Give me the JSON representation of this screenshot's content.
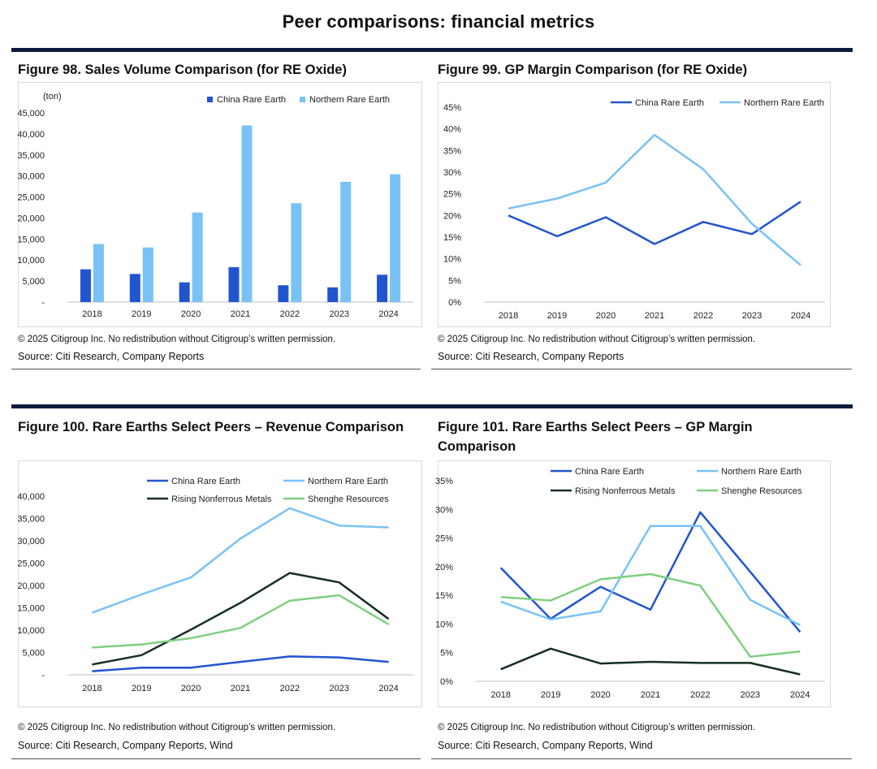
{
  "page": {
    "title": "Peer comparisons: financial metrics"
  },
  "colors": {
    "dark_blue": "#2155cf",
    "light_blue": "#79c2f5",
    "dark_green": "#14301f",
    "light_green": "#7fcf7f",
    "rule": "#0d1b3e"
  },
  "figures": [
    {
      "title": "Figure 98. Sales Volume Comparison (for RE Oxide)",
      "note": "© 2025 Citigroup Inc. No redistribution without Citigroup’s written permission.",
      "source": "Source: Citi Research, Company Reports"
    },
    {
      "title": "Figure 99. GP Margin Comparison (for RE Oxide)",
      "note": "© 2025 Citigroup Inc. No redistribution without Citigroup’s written permission.",
      "source": "Source: Citi Research, Company Reports"
    },
    {
      "title": "Figure 100. Rare Earths Select Peers – Revenue Comparison",
      "note": "© 2025 Citigroup Inc. No redistribution without Citigroup’s written permission.",
      "source": "Source: Citi Research, Company Reports, Wind"
    },
    {
      "title": "Figure 101. Rare Earths Select Peers – GP Margin Comparison",
      "note": "© 2025 Citigroup Inc. No redistribution without Citigroup’s written permission.",
      "source": "Source: Citi Research, Company Reports, Wind"
    }
  ],
  "chart_data": [
    {
      "type": "bar",
      "unit_label": "(ton)",
      "categories": [
        "2018",
        "2019",
        "2020",
        "2021",
        "2022",
        "2023",
        "2024"
      ],
      "yticks": [
        "-",
        "5,000",
        "10,000",
        "15,000",
        "20,000",
        "25,000",
        "30,000",
        "35,000",
        "40,000",
        "45,000"
      ],
      "ylim": [
        0,
        45000
      ],
      "series": [
        {
          "name": "China Rare Earth",
          "color": "#2155cf",
          "values": [
            7800,
            6700,
            4700,
            8300,
            4000,
            3500,
            6500
          ]
        },
        {
          "name": "Northern Rare Earth",
          "color": "#79c2f5",
          "values": [
            13800,
            13000,
            21300,
            42000,
            23500,
            28600,
            30400
          ]
        }
      ],
      "legend": "top-right"
    },
    {
      "type": "line",
      "categories": [
        "2018",
        "2019",
        "2020",
        "2021",
        "2022",
        "2023",
        "2024"
      ],
      "yticks": [
        "0%",
        "5%",
        "10%",
        "15%",
        "20%",
        "25%",
        "30%",
        "35%",
        "40%",
        "45%"
      ],
      "ylim": [
        0,
        45
      ],
      "series": [
        {
          "name": "China Rare Earth",
          "color": "#2155cf",
          "values": [
            20.0,
            15.2,
            19.6,
            13.4,
            18.5,
            15.7,
            23.2
          ]
        },
        {
          "name": "Northern Rare Earth",
          "color": "#79c2f5",
          "values": [
            21.6,
            23.9,
            27.6,
            38.6,
            30.7,
            18.1,
            8.5
          ]
        }
      ],
      "legend": "top"
    },
    {
      "type": "line",
      "categories": [
        "2018",
        "2019",
        "2020",
        "2021",
        "2022",
        "2023",
        "2024"
      ],
      "yticks": [
        "-",
        "5,000",
        "10,000",
        "15,000",
        "20,000",
        "25,000",
        "30,000",
        "35,000",
        "40,000"
      ],
      "ylim": [
        0,
        40000
      ],
      "series": [
        {
          "name": "China Rare Earth",
          "color": "#2155cf",
          "values": [
            800,
            1600,
            1600,
            2900,
            4100,
            3900,
            2900
          ]
        },
        {
          "name": "Northern Rare Earth",
          "color": "#79c2f5",
          "values": [
            13900,
            18000,
            21800,
            30500,
            37300,
            33400,
            33000
          ]
        },
        {
          "name": "Rising Nonferrous Metals",
          "color": "#14301f",
          "values": [
            2300,
            4400,
            10100,
            16100,
            22800,
            20700,
            12500
          ]
        },
        {
          "name": "Shenghe Resources",
          "color": "#7fcf7f",
          "values": [
            6100,
            6800,
            8200,
            10500,
            16600,
            17800,
            11300
          ]
        }
      ],
      "legend": "top"
    },
    {
      "type": "line",
      "categories": [
        "2018",
        "2019",
        "2020",
        "2021",
        "2022",
        "2023",
        "2024"
      ],
      "yticks": [
        "0%",
        "5%",
        "10%",
        "15%",
        "20%",
        "25%",
        "30%",
        "35%"
      ],
      "ylim": [
        0,
        35
      ],
      "series": [
        {
          "name": "China Rare Earth",
          "color": "#2155cf",
          "values": [
            19.8,
            10.9,
            16.5,
            12.5,
            29.5,
            19.1,
            8.6
          ]
        },
        {
          "name": "Northern Rare Earth",
          "color": "#79c2f5",
          "values": [
            13.9,
            10.8,
            12.2,
            27.1,
            27.1,
            14.2,
            9.8
          ]
        },
        {
          "name": "Rising Nonferrous Metals",
          "color": "#14301f",
          "values": [
            2.1,
            5.7,
            3.1,
            3.4,
            3.2,
            3.2,
            1.2
          ]
        },
        {
          "name": "Shenghe Resources",
          "color": "#7fcf7f",
          "values": [
            14.7,
            14.1,
            17.8,
            18.7,
            16.7,
            4.3,
            5.2
          ]
        }
      ],
      "legend": "top"
    }
  ]
}
